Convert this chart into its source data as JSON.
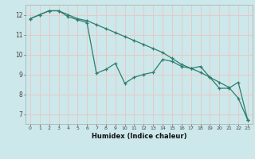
{
  "xlabel": "Humidex (Indice chaleur)",
  "bg_color": "#cce8ea",
  "grid_color": "#e8c8c8",
  "line_color": "#2e7d6e",
  "xlim": [
    -0.5,
    23.5
  ],
  "ylim": [
    6.5,
    12.5
  ],
  "yticks": [
    7,
    8,
    9,
    10,
    11,
    12
  ],
  "xticks": [
    0,
    1,
    2,
    3,
    4,
    5,
    6,
    7,
    8,
    9,
    10,
    11,
    12,
    13,
    14,
    15,
    16,
    17,
    18,
    19,
    20,
    21,
    22,
    23
  ],
  "series1_x": [
    0,
    1,
    2,
    3,
    4,
    5,
    6,
    7,
    8,
    9,
    10,
    11,
    12,
    13,
    14,
    15,
    16,
    17,
    18,
    19,
    20,
    21,
    22,
    23
  ],
  "series1_y": [
    11.8,
    12.0,
    12.2,
    12.2,
    12.0,
    11.8,
    11.7,
    11.5,
    11.3,
    11.1,
    10.9,
    10.7,
    10.5,
    10.3,
    10.1,
    9.8,
    9.5,
    9.3,
    9.1,
    8.85,
    8.6,
    8.35,
    7.8,
    6.7
  ],
  "series2_x": [
    0,
    1,
    2,
    3,
    4,
    5,
    6,
    7,
    8,
    9,
    10,
    11,
    12,
    13,
    14,
    15,
    16,
    17,
    18,
    19,
    20,
    21,
    22,
    23
  ],
  "series2_y": [
    11.8,
    12.0,
    12.2,
    12.2,
    11.9,
    11.75,
    11.6,
    9.05,
    9.25,
    9.55,
    8.55,
    8.85,
    9.0,
    9.1,
    9.75,
    9.65,
    9.4,
    9.3,
    9.4,
    8.85,
    8.3,
    8.3,
    8.6,
    6.7
  ]
}
